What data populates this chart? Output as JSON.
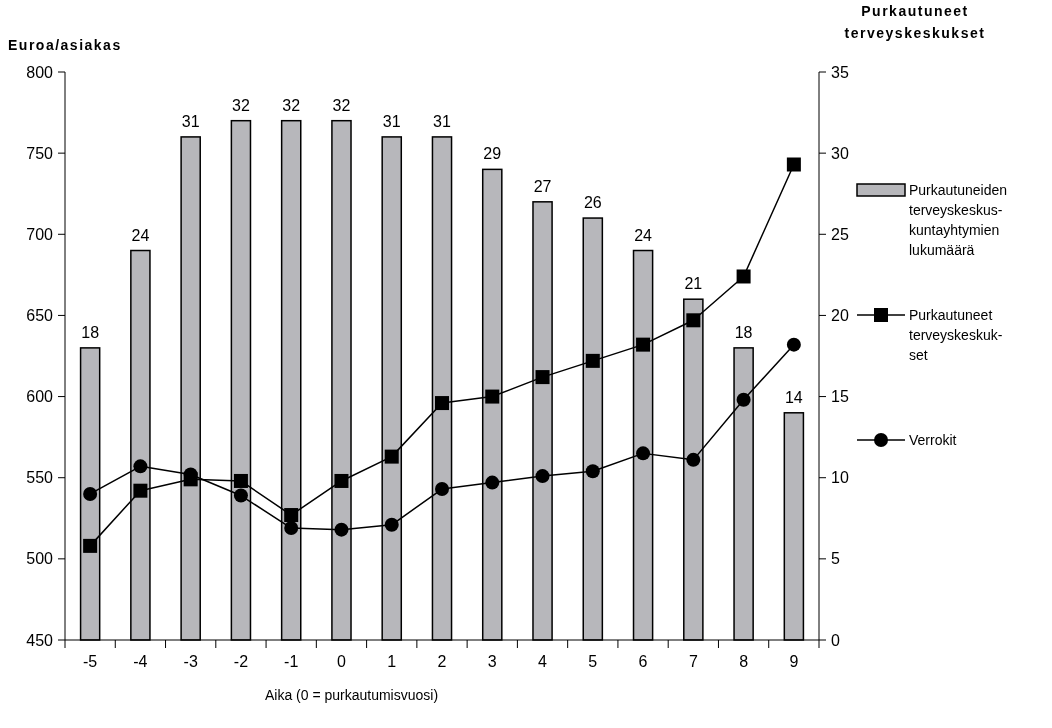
{
  "chart_data": {
    "type": "bar",
    "categories": [
      "-5",
      "-4",
      "-3",
      "-2",
      "-1",
      "0",
      "1",
      "2",
      "3",
      "4",
      "5",
      "6",
      "7",
      "8",
      "9"
    ],
    "xlabel": "Aika (0 = purkautumisvuosi)",
    "ylabel": "Euroa/asiakas",
    "y2label": "Purkautuneet\nterveyskeskukset",
    "ylim": [
      450,
      800
    ],
    "yticks": [
      450,
      500,
      550,
      600,
      650,
      700,
      750,
      800
    ],
    "y2lim": [
      0,
      35
    ],
    "y2ticks": [
      0,
      5,
      10,
      15,
      20,
      25,
      30,
      35
    ],
    "legend": "right",
    "series": [
      {
        "axis": "y2",
        "name": "Purkautuneiden\nterveyskeskus-\nkuntayhtymien\nlukumäärä",
        "color": "#b7b7bb",
        "data_labels": true,
        "values": [
          18,
          24,
          31,
          32,
          32,
          32,
          31,
          31,
          29,
          27,
          26,
          24,
          21,
          18,
          14
        ]
      },
      {
        "type": "line",
        "name": "Purkautuneet\nterveyskeskuk-\nset",
        "color": "#000000",
        "marker": "square",
        "values": [
          508,
          542,
          549,
          548,
          527,
          548,
          563,
          596,
          600,
          612,
          622,
          632,
          647,
          674,
          743
        ]
      },
      {
        "type": "line",
        "name": "Verrokit",
        "color": "#000000",
        "marker": "circle",
        "values": [
          540,
          557,
          552,
          539,
          519,
          518,
          521,
          543,
          547,
          551,
          554,
          565,
          561,
          598,
          632
        ]
      }
    ]
  }
}
